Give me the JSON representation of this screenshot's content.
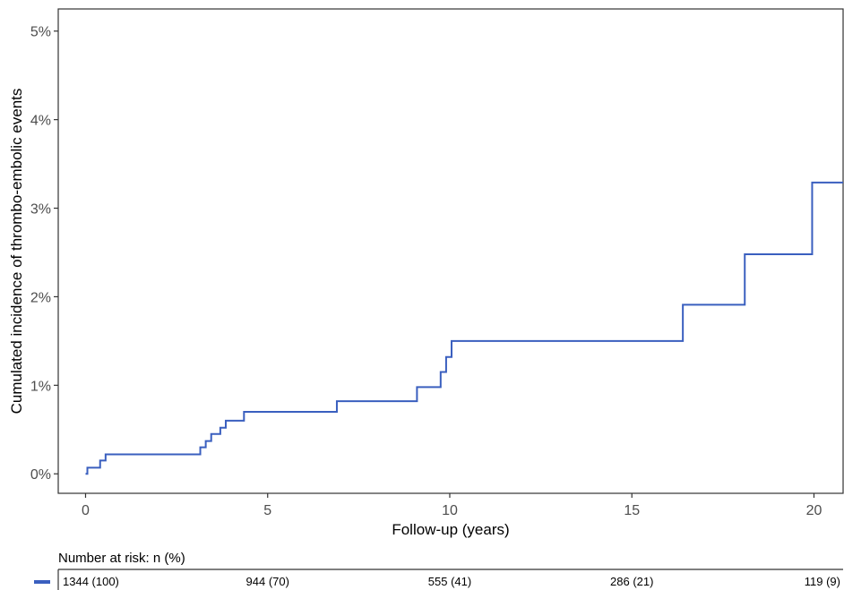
{
  "chart_data": {
    "type": "line",
    "title": "",
    "xlabel": "Follow-up (years)",
    "ylabel": "Cumulated incidence of thrombo-embolic events",
    "xlim": [
      -0.75,
      20.8
    ],
    "ylim": [
      -0.22,
      5.25
    ],
    "x_ticks": [
      0,
      5,
      10,
      15,
      20
    ],
    "x_tick_labels": [
      "0",
      "5",
      "10",
      "15",
      "20"
    ],
    "y_ticks": [
      0,
      1,
      2,
      3,
      4,
      5
    ],
    "y_tick_labels": [
      "0%",
      "1%",
      "2%",
      "3%",
      "4%",
      "5%"
    ],
    "grid": false,
    "legend": "none",
    "series": [
      {
        "color": "#3a5fbf",
        "step": true,
        "x": [
          0,
          0.05,
          0.4,
          0.55,
          3.15,
          3.3,
          3.45,
          3.7,
          3.85,
          4.35,
          6.9,
          9.1,
          9.75,
          9.9,
          10.05,
          16.4,
          18.1,
          19.95,
          20.8
        ],
        "y": [
          0.0,
          0.07,
          0.15,
          0.22,
          0.3,
          0.37,
          0.45,
          0.52,
          0.6,
          0.7,
          0.82,
          0.98,
          1.15,
          1.32,
          1.5,
          1.91,
          2.48,
          3.29,
          3.29
        ]
      }
    ]
  },
  "risk_table": {
    "title": "Number at risk: n (%)",
    "color": "#3a5fbf",
    "x": [
      0,
      5,
      10,
      15,
      20
    ],
    "values": [
      "1344 (100)",
      "944 (70)",
      "555 (41)",
      "286 (21)",
      "119 (9)"
    ]
  }
}
